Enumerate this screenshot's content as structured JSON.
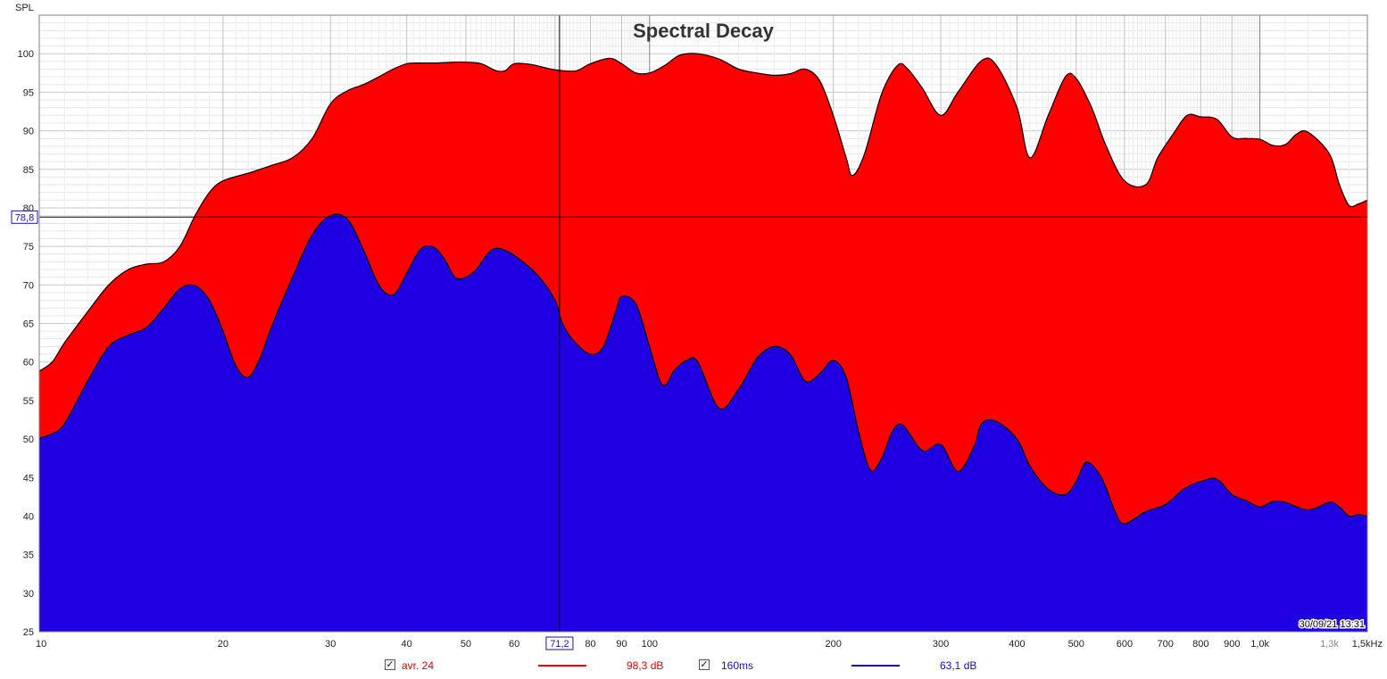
{
  "chart_data": {
    "type": "area",
    "title": "Spectral Decay",
    "ylabel": "SPL",
    "xscale": "log",
    "xlim": [
      10,
      1500
    ],
    "ylim": [
      25,
      105
    ],
    "yticks": [
      25,
      30,
      35,
      40,
      45,
      50,
      55,
      60,
      65,
      70,
      75,
      80,
      85,
      90,
      95,
      100
    ],
    "xticks": [
      {
        "v": 10,
        "label": "10"
      },
      {
        "v": 20,
        "label": "20"
      },
      {
        "v": 30,
        "label": "30"
      },
      {
        "v": 40,
        "label": "40"
      },
      {
        "v": 50,
        "label": "50"
      },
      {
        "v": 60,
        "label": "60"
      },
      {
        "v": 80,
        "label": "80"
      },
      {
        "v": 90,
        "label": "90"
      },
      {
        "v": 100,
        "label": "100"
      },
      {
        "v": 200,
        "label": "200"
      },
      {
        "v": 300,
        "label": "300"
      },
      {
        "v": 400,
        "label": "400"
      },
      {
        "v": 500,
        "label": "500"
      },
      {
        "v": 600,
        "label": "600"
      },
      {
        "v": 700,
        "label": "700"
      },
      {
        "v": 800,
        "label": "800"
      },
      {
        "v": 900,
        "label": "900"
      },
      {
        "v": 1000,
        "label": "1,0k"
      },
      {
        "v": 1300,
        "label": "1,3k"
      },
      {
        "v": 1500,
        "label": "1,5kHz"
      }
    ],
    "cursor": {
      "x": 71.2,
      "y": 78.8,
      "x_label": "71,2",
      "y_label": "78,8"
    },
    "timestamp": "30/09/21 13:31",
    "series": [
      {
        "name": "avr. 24",
        "color": "#ff0000",
        "x": [
          10,
          10.5,
          11,
          12,
          13,
          14,
          15,
          16,
          17,
          18,
          19,
          20,
          22,
          24,
          26,
          28,
          30,
          32,
          34,
          36,
          38,
          40,
          42,
          45,
          48,
          50,
          53,
          56,
          58,
          60,
          64,
          68,
          72,
          76,
          80,
          86,
          90,
          95,
          100,
          106,
          112,
          120,
          130,
          140,
          150,
          160,
          170,
          180,
          190,
          200,
          210,
          215,
          225,
          240,
          255,
          265,
          280,
          300,
          320,
          350,
          370,
          400,
          420,
          450,
          480,
          500,
          530,
          560,
          600,
          650,
          680,
          720,
          760,
          800,
          850,
          900,
          950,
          1000,
          1050,
          1100,
          1150,
          1200,
          1300,
          1350,
          1400,
          1450,
          1500
        ],
        "y": [
          58.8,
          60,
          62.5,
          66.5,
          70,
          72,
          72.7,
          73,
          75,
          79,
          82,
          83.5,
          84.5,
          85.5,
          86.5,
          89,
          93.5,
          95.2,
          96,
          97,
          98,
          98.7,
          98.8,
          98.8,
          98.9,
          98.9,
          98.7,
          97.8,
          97.8,
          98.7,
          98.6,
          98.1,
          97.8,
          97.8,
          98.7,
          99.4,
          98.7,
          97.5,
          97.5,
          98.5,
          99.8,
          100,
          99.3,
          98,
          97.5,
          97.2,
          97.4,
          98,
          96.5,
          92,
          86.5,
          84.2,
          87,
          94.8,
          98.5,
          98,
          95.5,
          92,
          95,
          99.1,
          98.5,
          93,
          86.5,
          92,
          97,
          96.8,
          93,
          88,
          83.5,
          83,
          86.5,
          89.5,
          92,
          91.8,
          91.5,
          89.2,
          89,
          88.9,
          88.1,
          88.2,
          89.6,
          89.8,
          87,
          83,
          80.3,
          80.5,
          81
        ]
      },
      {
        "name": "160ms",
        "color": "#1e00e0",
        "x": [
          10,
          10.5,
          11,
          12,
          13,
          14,
          15,
          16,
          17,
          18,
          19,
          20,
          21,
          22,
          23,
          24,
          26,
          28,
          30,
          32,
          34,
          36,
          38,
          40,
          42,
          44,
          46,
          48,
          50,
          52,
          55,
          58,
          62,
          66,
          70,
          72,
          75,
          80,
          84,
          88,
          90,
          95,
          100,
          105,
          110,
          115,
          120,
          130,
          140,
          150,
          160,
          170,
          180,
          190,
          200,
          210,
          220,
          230,
          240,
          250,
          260,
          280,
          300,
          320,
          340,
          350,
          370,
          400,
          420,
          450,
          480,
          500,
          520,
          550,
          580,
          600,
          650,
          700,
          750,
          800,
          850,
          900,
          950,
          1000,
          1050,
          1100,
          1200,
          1300,
          1350,
          1400,
          1450,
          1500
        ],
        "y": [
          50.1,
          50.7,
          52,
          57.5,
          62,
          63.5,
          64.5,
          67,
          69.5,
          69.9,
          68,
          64,
          59.5,
          58,
          60.5,
          64.5,
          71,
          76.5,
          79,
          78.5,
          74.5,
          70,
          68.7,
          71.5,
          74.5,
          75,
          73.5,
          71,
          71,
          72,
          74.5,
          74.5,
          73,
          71,
          68,
          65,
          62.8,
          61,
          62,
          66.5,
          68.5,
          67.5,
          62,
          57,
          59,
          60.2,
          60,
          54,
          56.5,
          60.5,
          62,
          61,
          57.5,
          58.5,
          60.2,
          58,
          51,
          46,
          47.5,
          51,
          51.8,
          48.5,
          49.3,
          45.8,
          49,
          52,
          52.3,
          50,
          46.5,
          43.5,
          42.8,
          44.5,
          47,
          45,
          40.5,
          39,
          40.6,
          41.5,
          43.5,
          44.5,
          44.8,
          42.8,
          42,
          41.2,
          41.9,
          41.8,
          40.8,
          41.8,
          41.2,
          40,
          40.2,
          40
        ]
      }
    ],
    "legend": [
      {
        "label": "avr. 24",
        "value": "98,3 dB",
        "color": "#ff0000",
        "checked": true
      },
      {
        "label": "160ms",
        "value": "63,1 dB",
        "color": "#1e00e0",
        "checked": true
      }
    ]
  },
  "ui": {
    "legend_avr_label": "avr. 24",
    "legend_avr_value": "98,3 dB",
    "legend_160_label": "160ms",
    "legend_160_value": "63,1 dB",
    "check_glyph": "✓"
  }
}
